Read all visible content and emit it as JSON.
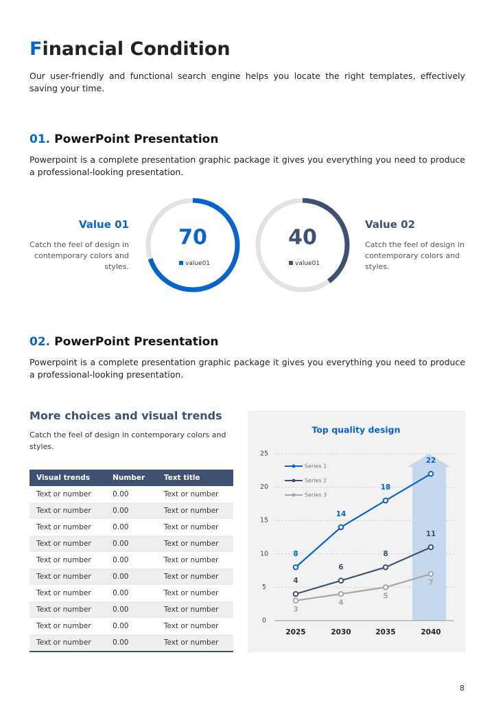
{
  "header": {
    "title": "Financial Condition",
    "text": "Our user-friendly and functional search engine helps you locate the right templates, effectively saving your time."
  },
  "section1": {
    "number": "01.",
    "title": "PowerPoint Presentation",
    "text": "Powerpoint is a complete presentation graphic package it gives you everything you need to produce a professional-looking presentation."
  },
  "value1": {
    "title": "Value 01",
    "text": "Catch the feel of design in contemporary colors and styles."
  },
  "value2": {
    "title": "Value 02",
    "text": "Catch the feel of design in contemporary colors and styles."
  },
  "section2": {
    "number": "02.",
    "title": "PowerPoint Presentation",
    "text": "Powerpoint is a complete presentation graphic package it gives you everything you need to produce a professional-looking presentation."
  },
  "table_block": {
    "title": "More choices and visual trends",
    "text": "Catch the feel of design in contemporary colors and styles."
  },
  "table": {
    "columns": [
      "Visual trends",
      "Number",
      "Text title"
    ],
    "rows": [
      [
        "Text or number",
        "0.00",
        "Text or number"
      ],
      [
        "Text or number",
        "0.00",
        "Text or number"
      ],
      [
        "Text or number",
        "0.00",
        "Text or number"
      ],
      [
        "Text or number",
        "0.00",
        "Text or number"
      ],
      [
        "Text or number",
        "0.00",
        "Text or number"
      ],
      [
        "Text or number",
        "0.00",
        "Text or number"
      ],
      [
        "Text or number",
        "0.00",
        "Text or number"
      ],
      [
        "Text or number",
        "0.00",
        "Text or number"
      ],
      [
        "Text or number",
        "0.00",
        "Text or number"
      ],
      [
        "Text or number",
        "0.00",
        "Text or number"
      ]
    ]
  },
  "chart_data": [
    {
      "type": "donut",
      "categories": [
        "value01"
      ],
      "values": [
        70
      ],
      "color": "#0a64c8",
      "ylim": [
        0,
        100
      ]
    },
    {
      "type": "donut",
      "categories": [
        "value01"
      ],
      "values": [
        40
      ],
      "color": "#3f5170",
      "ylim": [
        0,
        100
      ]
    },
    {
      "type": "line",
      "title": "Top quality design",
      "categories": [
        "2025",
        "2030",
        "2035",
        "2040"
      ],
      "series": [
        {
          "name": "Series 1",
          "color": "#0a64c8",
          "values": [
            8,
            14,
            18,
            22
          ]
        },
        {
          "name": "Series 2",
          "color": "#3f5170",
          "values": [
            4,
            6,
            8,
            11
          ]
        },
        {
          "name": "Series 3",
          "color": "#a6a6a6",
          "values": [
            3,
            4,
            5,
            7
          ]
        }
      ],
      "ylim": [
        0,
        25
      ],
      "yticks": [
        0,
        5,
        10,
        15,
        20,
        25
      ],
      "grid": true,
      "legend": "top-left"
    }
  ],
  "page_number": "8"
}
